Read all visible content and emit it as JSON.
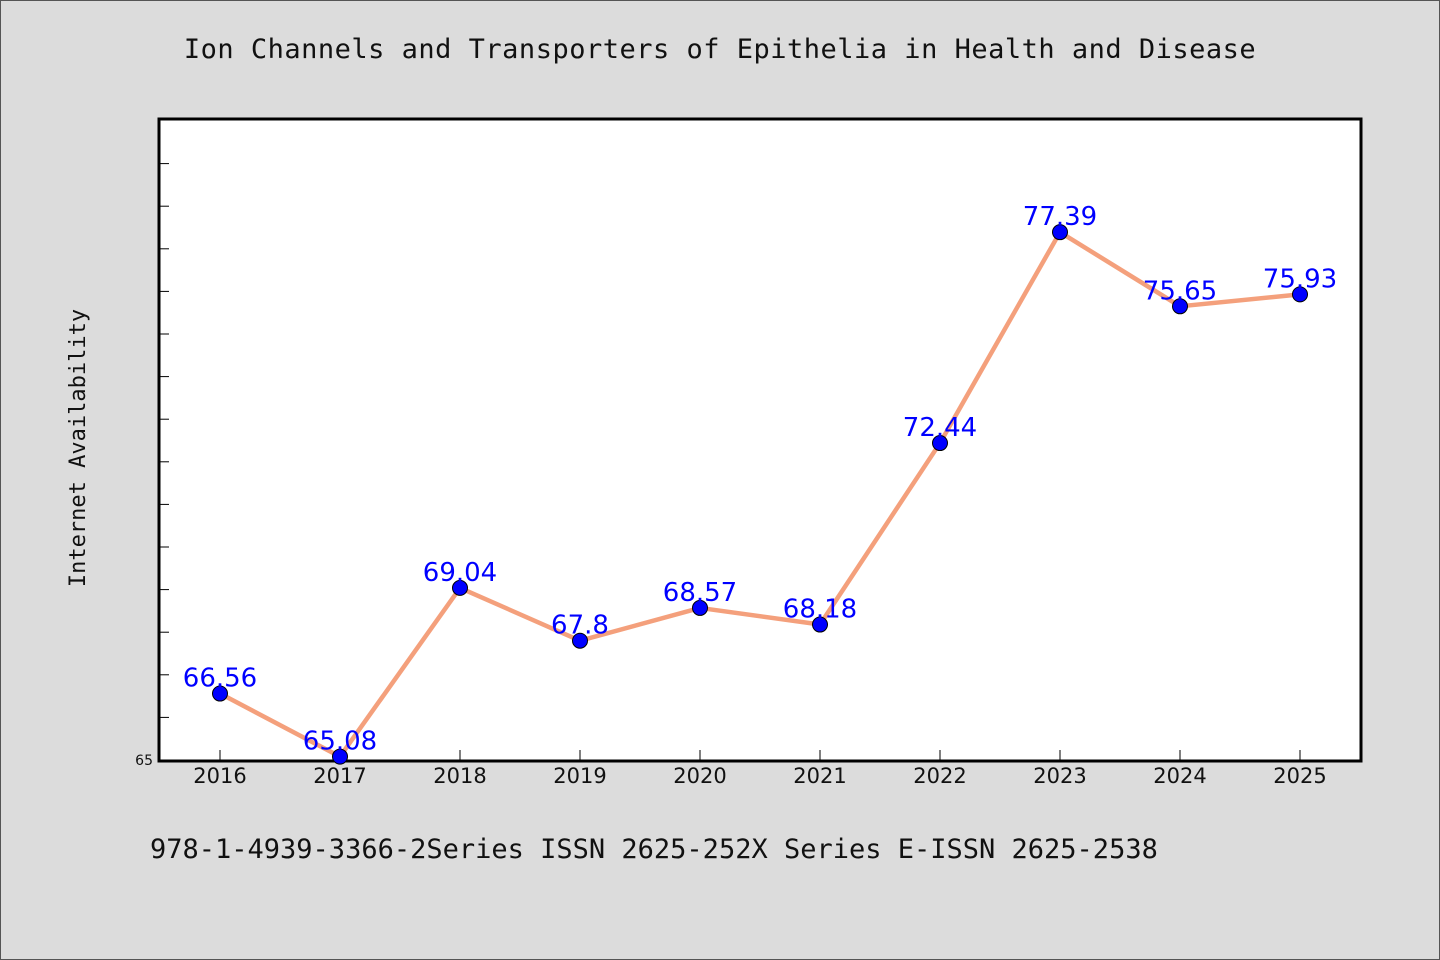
{
  "chart_data": {
    "type": "line",
    "title": "Ion Channels and Transporters of Epithelia in Health and Disease",
    "xlabel": "",
    "ylabel": "Internet Availability",
    "categories": [
      "2016",
      "2017",
      "2018",
      "2019",
      "2020",
      "2021",
      "2022",
      "2023",
      "2024",
      "2025"
    ],
    "series": [
      {
        "values": [
          66.56,
          65.08,
          69.04,
          67.8,
          68.57,
          68.18,
          72.44,
          77.39,
          75.65,
          75.93
        ]
      }
    ],
    "data_labels": [
      "66.56",
      "65.08",
      "69.04",
      "67.8",
      "68.57",
      "68.18",
      "72.44",
      "77.39",
      "75.65",
      "75.93"
    ],
    "ylim": [
      65,
      80
    ],
    "yticks_labeled": [
      "65"
    ],
    "grid": false,
    "line_color": "#f4a07c",
    "marker_color": "#0000ff",
    "label_color": "#0000ff"
  },
  "footer_text": "978-1-4939-3366-2Series ISSN 2625-252X Series E-ISSN 2625-2538"
}
